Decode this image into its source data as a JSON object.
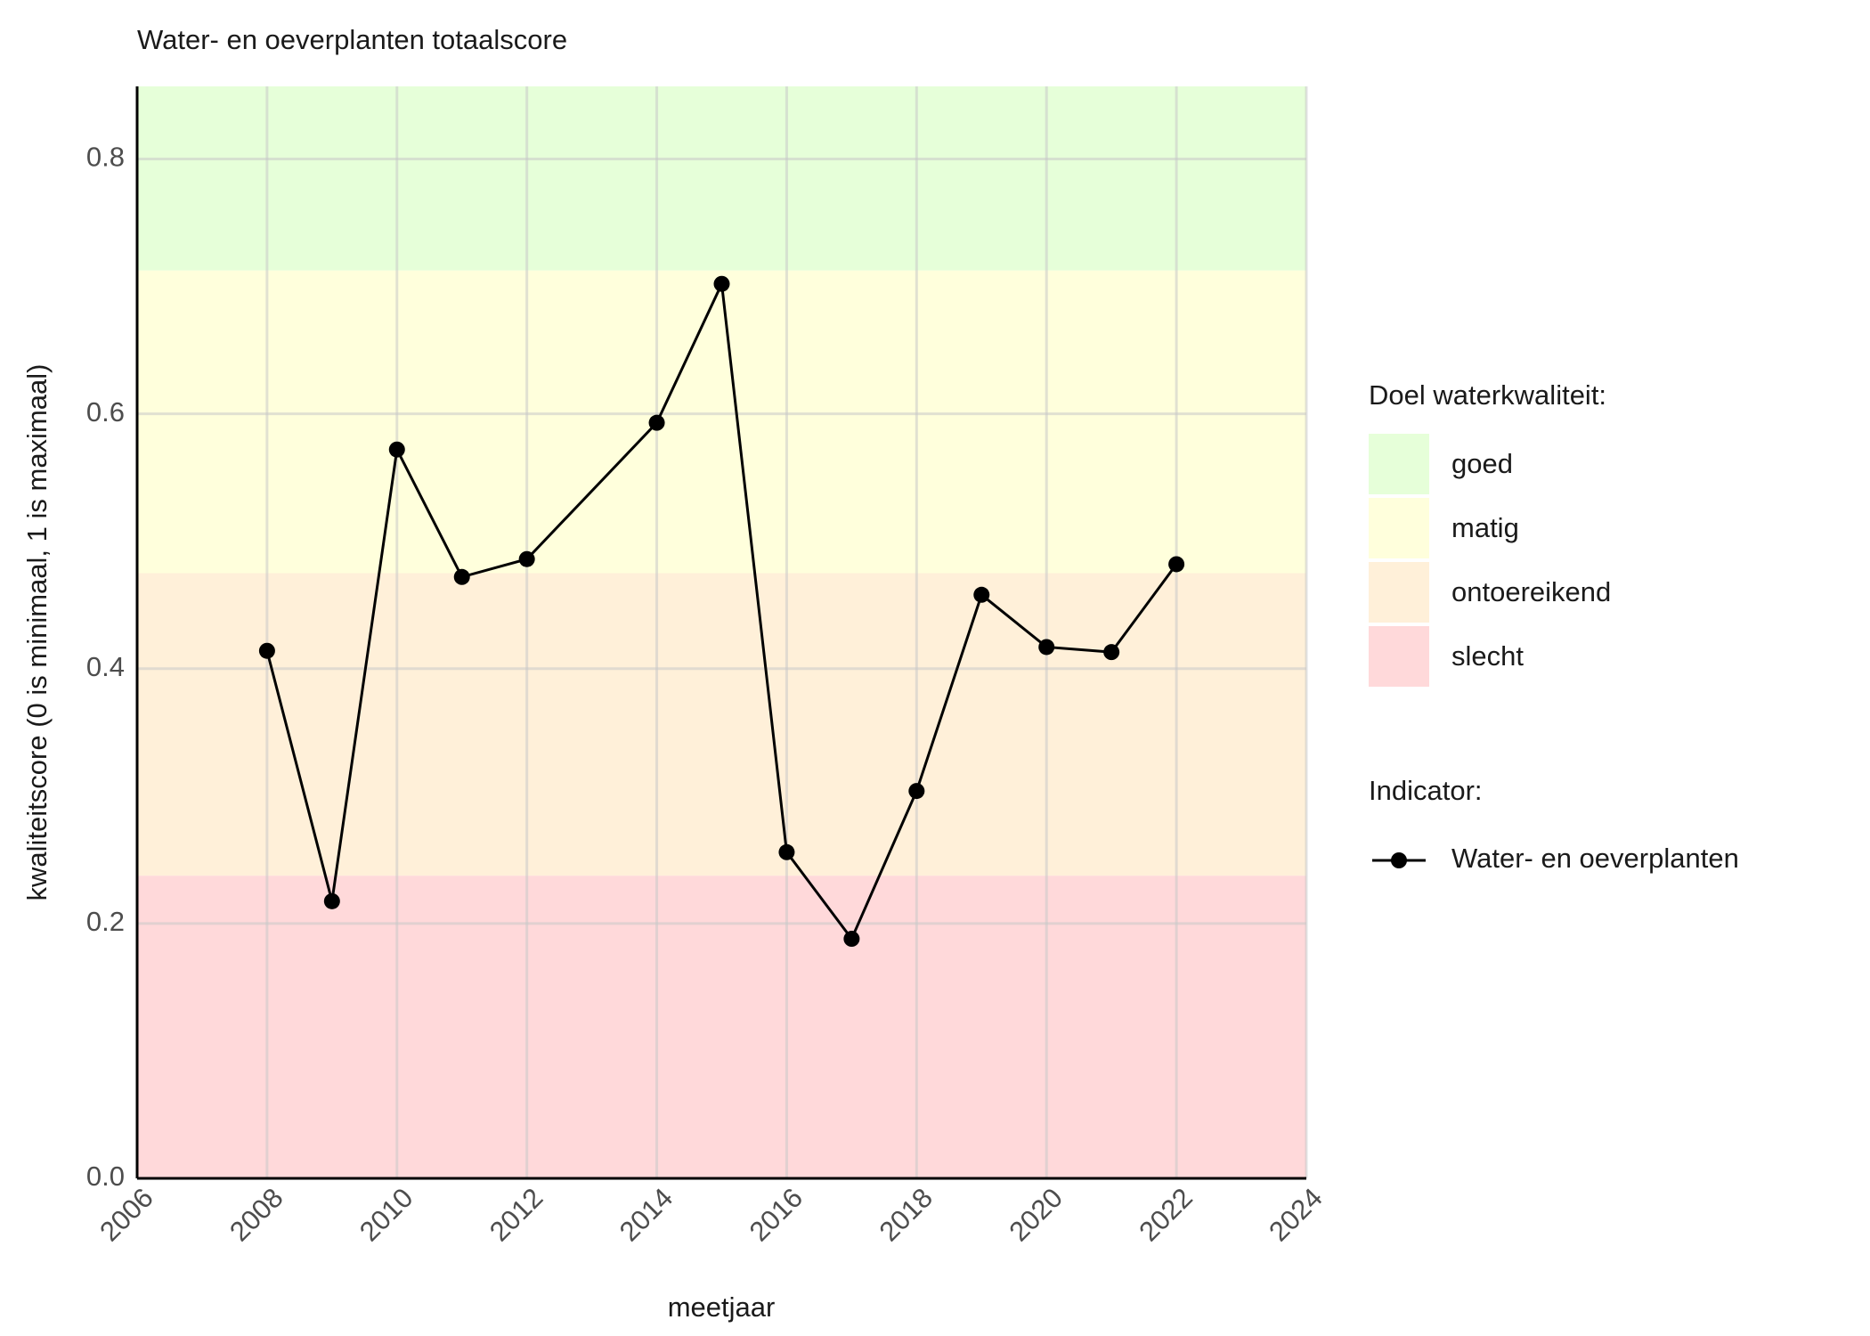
{
  "chart_data": {
    "type": "line",
    "title": "Water- en oeverplanten totaalscore",
    "x_label": "meetjaar",
    "y_label": "kwaliteitscore (0 is minimaal, 1 is maximaal)",
    "x": [
      2008,
      2009,
      2010,
      2011,
      2012,
      2014,
      2015,
      2016,
      2017,
      2018,
      2019,
      2020,
      2021,
      2022
    ],
    "series": [
      {
        "name": "Water- en oeverplanten",
        "color": "#000000",
        "values": [
          0.414,
          0.2175,
          0.572,
          0.472,
          0.486,
          0.593,
          0.702,
          0.256,
          0.188,
          0.304,
          0.458,
          0.417,
          0.413,
          0.482
        ]
      }
    ],
    "xlim": [
      2006,
      2024
    ],
    "xticks": [
      2006,
      2008,
      2010,
      2012,
      2014,
      2016,
      2018,
      2020,
      2022,
      2024
    ],
    "ylim": [
      0,
      0.857
    ],
    "yticks": [
      {
        "value": 0,
        "label": "0.0"
      },
      {
        "value": 0.2,
        "label": "0.2"
      },
      {
        "value": 0.4,
        "label": "0.4"
      },
      {
        "value": 0.6,
        "label": "0.6"
      },
      {
        "value": 0.8,
        "label": "0.8"
      }
    ],
    "grid": true,
    "bands_title": "Doel waterkwaliteit:",
    "bands": [
      {
        "name": "goed",
        "color": "#e6ffd9",
        "range": [
          0.7125,
          0.857
        ]
      },
      {
        "name": "matig",
        "color": "#ffffdc",
        "range": [
          0.475,
          0.7125
        ]
      },
      {
        "name": "ontoereikend",
        "color": "#fff0d9",
        "range": [
          0.2375,
          0.475
        ]
      },
      {
        "name": "slecht",
        "color": "#ffd9da",
        "range": [
          0,
          0.2375
        ]
      }
    ],
    "legend_title": "Indicator:",
    "legend_position": "right"
  }
}
